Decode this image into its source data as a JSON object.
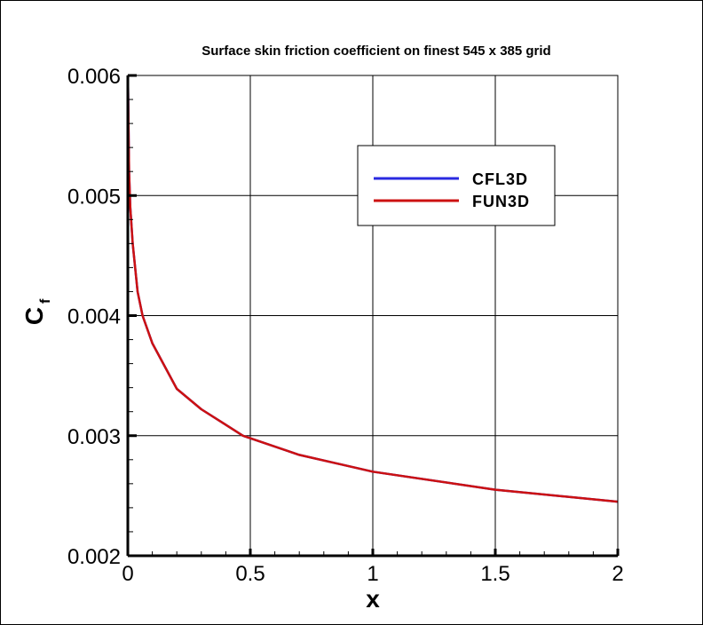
{
  "chart_data": {
    "type": "line",
    "title": "Surface skin friction coefficient on finest 545 x 385 grid",
    "xlabel": "x",
    "ylabel": "C",
    "ylabel_subscript": "f",
    "xlim": [
      0,
      2
    ],
    "ylim": [
      0.002,
      0.006
    ],
    "x_ticks": [
      "0",
      "0.5",
      "1",
      "1.5",
      "2"
    ],
    "y_ticks": [
      "0.002",
      "0.003",
      "0.004",
      "0.005",
      "0.006"
    ],
    "grid": true,
    "legend_position": "top-right",
    "series": [
      {
        "name": "CFL3D",
        "color": "#2a2ae0",
        "x": [
          0.0005,
          0.005,
          0.01,
          0.02,
          0.04,
          0.06,
          0.1,
          0.2,
          0.3,
          0.47,
          0.7,
          1.0,
          1.5,
          2.0
        ],
        "y": [
          0.006,
          0.0052,
          0.0049,
          0.0046,
          0.0042,
          0.004,
          0.00377,
          0.00339,
          0.00322,
          0.003,
          0.00284,
          0.0027,
          0.00255,
          0.00245
        ]
      },
      {
        "name": "FUN3D",
        "color": "#cc1111",
        "x": [
          0.0005,
          0.005,
          0.01,
          0.02,
          0.04,
          0.06,
          0.1,
          0.2,
          0.3,
          0.47,
          0.7,
          1.0,
          1.5,
          2.0
        ],
        "y": [
          0.006,
          0.0052,
          0.0049,
          0.0046,
          0.0042,
          0.004,
          0.00377,
          0.00339,
          0.00322,
          0.003,
          0.00284,
          0.0027,
          0.00255,
          0.00245
        ]
      }
    ]
  }
}
